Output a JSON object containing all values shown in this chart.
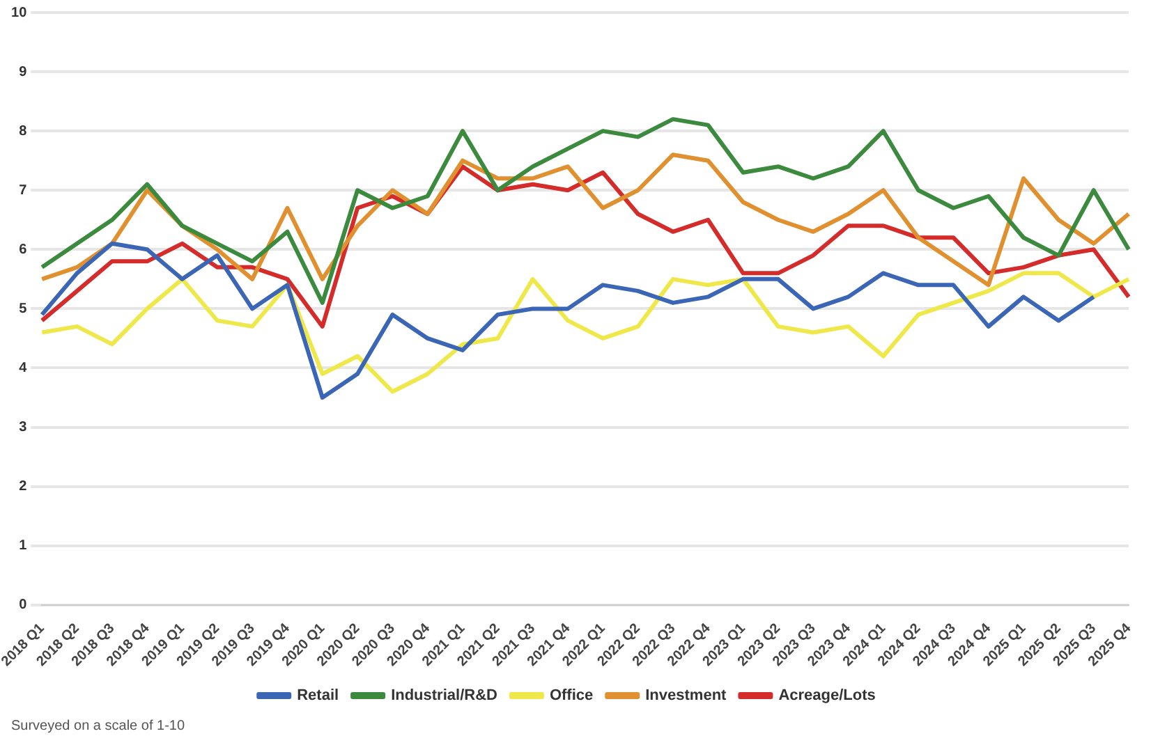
{
  "chart_data": {
    "type": "line",
    "categories": [
      "2018 Q1",
      "2018 Q2",
      "2018 Q3",
      "2018 Q4",
      "2019 Q1",
      "2019 Q2",
      "2019 Q3",
      "2019 Q4",
      "2020 Q1",
      "2020 Q2",
      "2020 Q3",
      "2020 Q4",
      "2021 Q1",
      "2021 Q2",
      "2021 Q3",
      "2021 Q4",
      "2022 Q1",
      "2022 Q2",
      "2022 Q3",
      "2022 Q4",
      "2023 Q1",
      "2023 Q2",
      "2023 Q3",
      "2023 Q4",
      "2024 Q1",
      "2024 Q2",
      "2024 Q3",
      "2024 Q4",
      "2025 Q1",
      "2025 Q2",
      "2025 Q3",
      "2025 Q4"
    ],
    "series": [
      {
        "name": "Retail",
        "color": "#3a66b5",
        "values": [
          4.9,
          5.6,
          6.1,
          6.0,
          5.5,
          5.9,
          5.0,
          5.4,
          3.5,
          3.9,
          4.9,
          4.5,
          4.3,
          4.9,
          5.0,
          5.0,
          5.4,
          5.3,
          5.1,
          5.2,
          5.5,
          5.5,
          5.0,
          5.2,
          5.6,
          5.4,
          5.4,
          4.7,
          5.2,
          4.8,
          5.2,
          null
        ]
      },
      {
        "name": "Industrial/R&D",
        "color": "#3b8a3e",
        "values": [
          5.7,
          6.1,
          6.5,
          7.1,
          6.4,
          6.1,
          5.8,
          6.3,
          5.1,
          7.0,
          6.7,
          6.9,
          8.0,
          7.0,
          7.4,
          7.7,
          8.0,
          7.9,
          8.2,
          8.1,
          7.3,
          7.4,
          7.2,
          7.4,
          8.0,
          7.0,
          6.7,
          6.9,
          6.2,
          5.9,
          7.0,
          6.0
        ]
      },
      {
        "name": "Office",
        "color": "#efe84a",
        "values": [
          4.6,
          4.7,
          4.4,
          5.0,
          5.5,
          4.8,
          4.7,
          5.4,
          3.9,
          4.2,
          3.6,
          3.9,
          4.4,
          4.5,
          5.5,
          4.8,
          4.5,
          4.7,
          5.5,
          5.4,
          5.5,
          4.7,
          4.6,
          4.7,
          4.2,
          4.9,
          5.1,
          5.3,
          5.6,
          5.6,
          5.2,
          5.5
        ]
      },
      {
        "name": "Investment",
        "color": "#e0902e",
        "values": [
          5.5,
          5.7,
          6.1,
          7.0,
          6.4,
          6.0,
          5.5,
          6.7,
          5.5,
          6.4,
          7.0,
          6.6,
          7.5,
          7.2,
          7.2,
          7.4,
          6.7,
          7.0,
          7.6,
          7.5,
          6.8,
          6.5,
          6.3,
          6.6,
          7.0,
          6.2,
          5.8,
          5.4,
          7.2,
          6.5,
          6.1,
          6.6
        ]
      },
      {
        "name": "Acreage/Lots",
        "color": "#d42b2b",
        "values": [
          4.8,
          5.3,
          5.8,
          5.8,
          6.1,
          5.7,
          5.7,
          5.5,
          4.7,
          6.7,
          6.9,
          6.6,
          7.4,
          7.0,
          7.1,
          7.0,
          7.3,
          6.6,
          6.3,
          6.5,
          5.6,
          5.6,
          5.9,
          6.4,
          6.4,
          6.2,
          6.2,
          5.6,
          5.7,
          5.9,
          6.0,
          5.2
        ]
      }
    ],
    "ylim": [
      0,
      10
    ],
    "yticks": [
      0,
      1,
      2,
      3,
      4,
      5,
      6,
      7,
      8,
      9,
      10
    ],
    "grid": "y",
    "legend": "bottom",
    "marker": "none",
    "line_style": "solid",
    "annotations": [
      "Surveyed on a scale of 1-10"
    ]
  }
}
